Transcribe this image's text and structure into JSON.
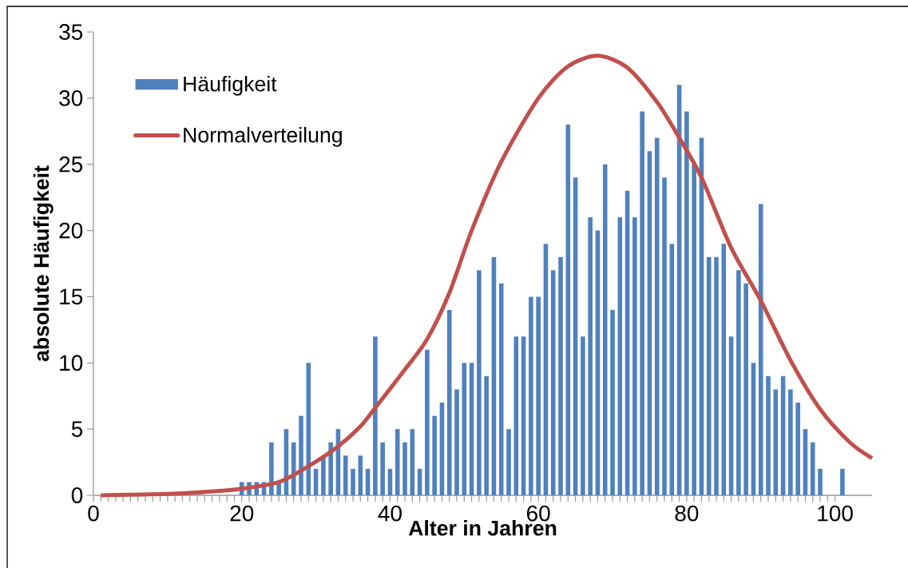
{
  "chart_data": {
    "type": "bar",
    "xlabel": "Alter in Jahren",
    "ylabel": "absolute Häufigkeit",
    "xlim": [
      0,
      105
    ],
    "xticks": [
      0,
      20,
      40,
      60,
      80,
      100
    ],
    "ylim": [
      0,
      35
    ],
    "yticks": [
      0,
      5,
      10,
      15,
      20,
      25,
      30,
      35
    ],
    "legend": "top left",
    "series": [
      {
        "name": "Häufigkeit",
        "color": "#4f81bd",
        "x": [
          20,
          21,
          22,
          23,
          24,
          25,
          26,
          27,
          28,
          29,
          30,
          31,
          32,
          33,
          34,
          35,
          36,
          37,
          38,
          39,
          40,
          41,
          42,
          43,
          44,
          45,
          46,
          47,
          48,
          49,
          50,
          51,
          52,
          53,
          54,
          55,
          56,
          57,
          58,
          59,
          60,
          61,
          62,
          63,
          64,
          65,
          66,
          67,
          68,
          69,
          70,
          71,
          72,
          73,
          74,
          75,
          76,
          77,
          78,
          79,
          80,
          81,
          82,
          83,
          84,
          85,
          86,
          87,
          88,
          89,
          90,
          91,
          92,
          93,
          94,
          95,
          96,
          97,
          98,
          99,
          100,
          101
        ],
        "values": [
          1,
          1,
          1,
          1,
          4,
          1,
          5,
          4,
          6,
          10,
          2,
          3,
          4,
          5,
          3,
          2,
          3,
          2,
          12,
          4,
          2,
          5,
          4,
          5,
          2,
          11,
          6,
          7,
          14,
          8,
          10,
          10,
          17,
          9,
          18,
          16,
          5,
          12,
          12,
          15,
          15,
          19,
          17,
          18,
          28,
          24,
          12,
          21,
          20,
          25,
          14,
          21,
          23,
          21,
          29,
          26,
          27,
          24,
          19,
          31,
          29,
          25,
          27,
          18,
          18,
          19,
          12,
          17,
          16,
          10,
          22,
          9,
          8,
          9,
          8,
          7,
          5,
          4,
          2,
          0,
          0,
          2
        ]
      },
      {
        "name": "Normalverteilung",
        "type": "line",
        "color": "#c0504d",
        "x": [
          1,
          5,
          10,
          15,
          20,
          25,
          29,
          33,
          36,
          38,
          42,
          45,
          48,
          51,
          55,
          60,
          64,
          68,
          72,
          76,
          79,
          82,
          86,
          90,
          94,
          98,
          102,
          105
        ],
        "values": [
          0.0,
          0.05,
          0.1,
          0.25,
          0.5,
          1.0,
          2.2,
          3.7,
          5.2,
          6.6,
          9.5,
          11.8,
          15.3,
          20.0,
          25.2,
          30.0,
          32.4,
          33.2,
          32.3,
          29.7,
          27.0,
          24.0,
          18.7,
          14.7,
          10.2,
          6.5,
          4.0,
          2.8
        ]
      }
    ]
  }
}
